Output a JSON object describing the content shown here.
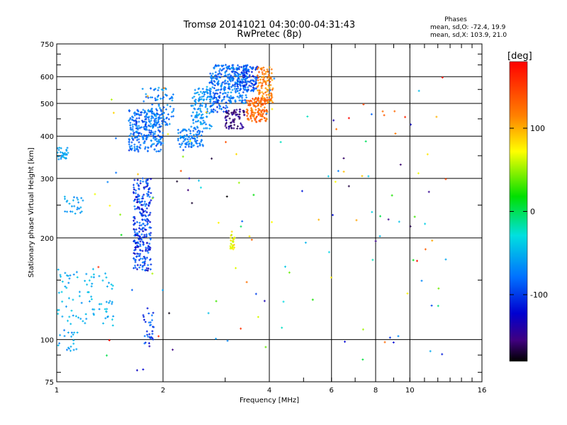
{
  "chart_data": {
    "type": "scatter",
    "title": "Tromsø 20141021 04:30:00-04:31:43",
    "subtitle": "RwPretec (8p)",
    "xlabel": "Frequency [MHz]",
    "ylabel": "Stationary phase Virtual Height [km]",
    "x_scale": "log",
    "y_scale": "log",
    "xlim": [
      1,
      16
    ],
    "ylim": [
      75,
      750
    ],
    "x_ticks": [
      1,
      2,
      4,
      6,
      8,
      10,
      16
    ],
    "y_ticks": [
      75,
      100,
      200,
      300,
      400,
      500,
      600,
      750
    ],
    "grid": true,
    "stats": {
      "heading": "Phases",
      "line_o": "mean, sd,O: -72.4, 19.9",
      "line_x": "mean, sd,X: 103.9, 21.0"
    },
    "colorbar": {
      "label": "[deg]",
      "range": [
        -180,
        180
      ],
      "ticks": [
        100,
        0,
        -100
      ]
    },
    "clusters": [
      {
        "fr": [
          1.6,
          2.0
        ],
        "hr": [
          360,
          480
        ],
        "n": 260,
        "phase": [
          -110,
          -70
        ]
      },
      {
        "fr": [
          1.75,
          2.15
        ],
        "hr": [
          430,
          560
        ],
        "n": 90,
        "phase": [
          -100,
          -60
        ]
      },
      {
        "fr": [
          2.2,
          2.6
        ],
        "hr": [
          370,
          420
        ],
        "n": 90,
        "phase": [
          -100,
          -70
        ]
      },
      {
        "fr": [
          2.4,
          2.75
        ],
        "hr": [
          420,
          560
        ],
        "n": 120,
        "phase": [
          -90,
          -55
        ]
      },
      {
        "fr": [
          2.7,
          3.05
        ],
        "hr": [
          470,
          650
        ],
        "n": 160,
        "phase": [
          -110,
          -70
        ]
      },
      {
        "fr": [
          3.05,
          3.45
        ],
        "hr": [
          500,
          650
        ],
        "n": 180,
        "phase": [
          -110,
          -60
        ]
      },
      {
        "fr": [
          3.0,
          3.4
        ],
        "hr": [
          420,
          480
        ],
        "n": 70,
        "phase": [
          -170,
          -130
        ]
      },
      {
        "fr": [
          3.3,
          3.7
        ],
        "hr": [
          540,
          650
        ],
        "n": 100,
        "phase": [
          -120,
          -80
        ]
      },
      {
        "fr": [
          3.45,
          3.95
        ],
        "hr": [
          440,
          520
        ],
        "n": 130,
        "phase": [
          110,
          145
        ]
      },
      {
        "fr": [
          3.7,
          4.1
        ],
        "hr": [
          500,
          640
        ],
        "n": 110,
        "phase": [
          100,
          140
        ]
      },
      {
        "fr": [
          1.65,
          1.85
        ],
        "hr": [
          160,
          300
        ],
        "n": 260,
        "phase": [
          -130,
          -80
        ]
      },
      {
        "fr": [
          1.0,
          1.08
        ],
        "hr": [
          340,
          370
        ],
        "n": 30,
        "phase": [
          -75,
          -50
        ]
      },
      {
        "fr": [
          1.05,
          1.2
        ],
        "hr": [
          235,
          265
        ],
        "n": 25,
        "phase": [
          -80,
          -55
        ]
      },
      {
        "fr": [
          1.0,
          1.45
        ],
        "hr": [
          110,
          165
        ],
        "n": 90,
        "phase": [
          -75,
          -40
        ]
      },
      {
        "fr": [
          1.0,
          1.15
        ],
        "hr": [
          92,
          108
        ],
        "n": 20,
        "phase": [
          -90,
          -50
        ]
      },
      {
        "fr": [
          1.75,
          1.9
        ],
        "hr": [
          95,
          125
        ],
        "n": 30,
        "phase": [
          -120,
          -80
        ]
      },
      {
        "fr": [
          3.1,
          3.2
        ],
        "hr": [
          185,
          210
        ],
        "n": 25,
        "phase": [
          60,
          100
        ]
      }
    ],
    "scatter_count": 140
  }
}
